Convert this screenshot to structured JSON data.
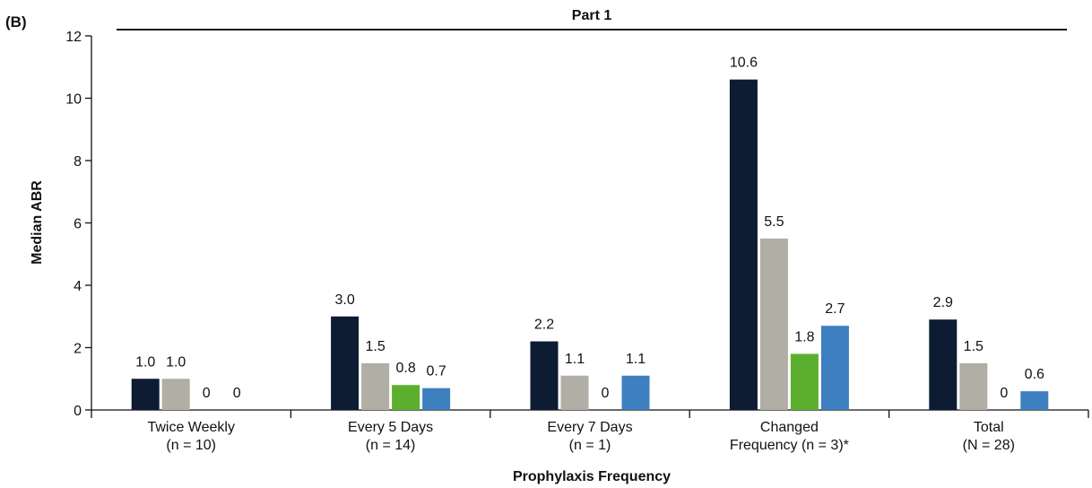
{
  "panel_label": "(B)",
  "chart_data": {
    "type": "bar",
    "title": "Part 1",
    "xlabel": "Prophylaxis Frequency",
    "ylabel": "Median ABR",
    "ylim": [
      0,
      12
    ],
    "yticks": [
      0,
      2,
      4,
      6,
      8,
      10,
      12
    ],
    "grid": false,
    "legend": "none",
    "categories": [
      [
        "Twice Weekly",
        "(n = 10)"
      ],
      [
        "Every 5 Days",
        "(n = 14)"
      ],
      [
        "Every 7 Days",
        "(n = 1)"
      ],
      [
        "Changed",
        "Frequency (n = 3)*"
      ],
      [
        "Total",
        "(N = 28)"
      ]
    ],
    "series": [
      {
        "color": "#0d1b33",
        "values": [
          1.0,
          3.0,
          2.2,
          10.6,
          2.9
        ],
        "labels": [
          "1.0",
          "3.0",
          "2.2",
          "10.6",
          "2.9"
        ]
      },
      {
        "color": "#b1aea5",
        "values": [
          1.0,
          1.5,
          1.1,
          5.5,
          1.5
        ],
        "labels": [
          "1.0",
          "1.5",
          "1.1",
          "5.5",
          "1.5"
        ]
      },
      {
        "color": "#5caf2e",
        "values": [
          0,
          0.8,
          0,
          1.8,
          0
        ],
        "labels": [
          "0",
          "0.8",
          "0",
          "1.8",
          "0"
        ]
      },
      {
        "color": "#3e7fc0",
        "values": [
          0,
          0.7,
          1.1,
          2.7,
          0.6
        ],
        "labels": [
          "0",
          "0.7",
          "1.1",
          "2.7",
          "0.6"
        ]
      }
    ]
  }
}
